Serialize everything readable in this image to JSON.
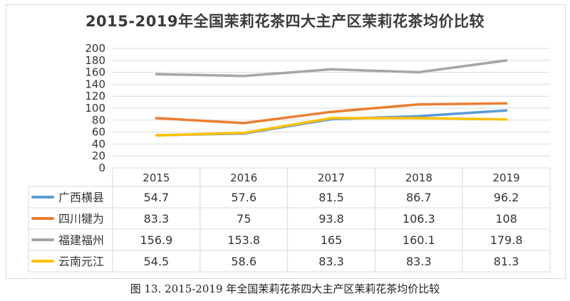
{
  "caption": "图 13. 2015-2019 年全国茉莉花茶四大主产区茉莉花茶均价比较",
  "chart_data": {
    "type": "line",
    "title": "2015-2019年全国茉莉花茶四大主产区茉莉花茶均价比较",
    "categories": [
      "2015",
      "2016",
      "2017",
      "2018",
      "2019"
    ],
    "ylim": [
      0,
      200
    ],
    "yticks": [
      0,
      20,
      40,
      60,
      80,
      100,
      120,
      140,
      160,
      180,
      200
    ],
    "grid": true,
    "legend": "data-table-below",
    "series": [
      {
        "name": "广西横县",
        "color": "#5b9bd5",
        "values": [
          54.7,
          57.6,
          81.5,
          86.7,
          96.2
        ],
        "labels": [
          "54.7",
          "57.6",
          "81.5",
          "86.7",
          "96.2"
        ]
      },
      {
        "name": "四川犍为",
        "color": "#ed7d31",
        "values": [
          83.3,
          75,
          93.8,
          106.3,
          108
        ],
        "labels": [
          "83.3",
          "75",
          "93.8",
          "106.3",
          "108"
        ]
      },
      {
        "name": "福建福州",
        "color": "#a5a5a5",
        "values": [
          156.9,
          153.8,
          165,
          160.1,
          179.8
        ],
        "labels": [
          "156.9",
          "153.8",
          "165",
          "160.1",
          "179.8"
        ]
      },
      {
        "name": "云南元江",
        "color": "#ffc000",
        "values": [
          54.5,
          58.6,
          83.3,
          83.3,
          81.3
        ],
        "labels": [
          "54.5",
          "58.6",
          "83.3",
          "83.3",
          "81.3"
        ]
      }
    ]
  }
}
